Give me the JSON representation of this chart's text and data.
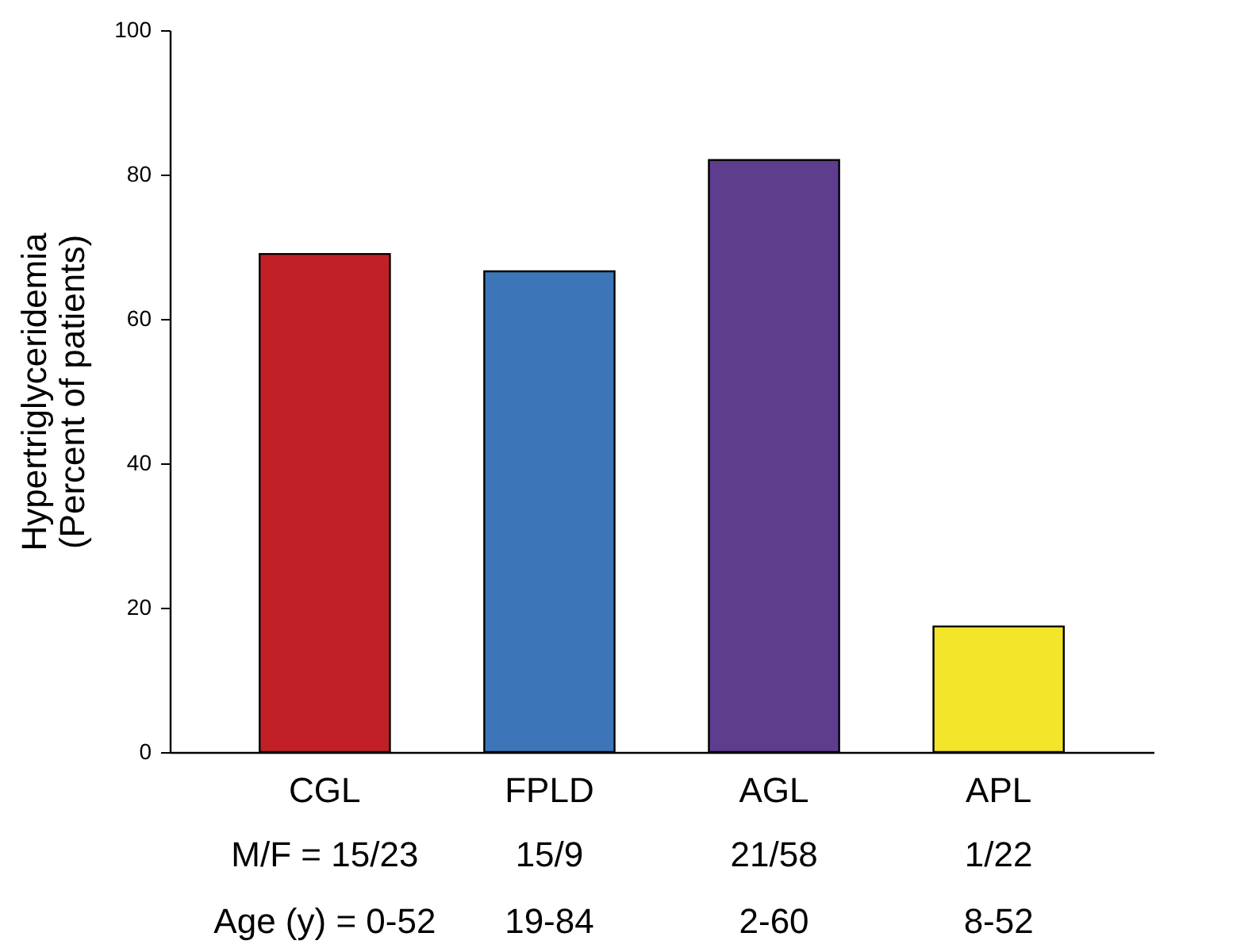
{
  "chart_data": {
    "type": "bar",
    "ylabel": "Hypertriglyceridemia\n(Percent of patients)",
    "categories": [
      "CGL",
      "FPLD",
      "AGL",
      "APL"
    ],
    "values": [
      69,
      66.6,
      82,
      17.4
    ],
    "colors": [
      "#c12026",
      "#3d76b8",
      "#5e3d8f",
      "#f2e52a"
    ],
    "ylim": [
      0,
      100
    ],
    "yticks": [
      0,
      20,
      40,
      60,
      80,
      100
    ],
    "grid": false,
    "annotations": [
      "M/F = 15/23",
      "15/9",
      "21/58",
      "1/22",
      "Age (y) = 0-52",
      "19-84",
      "2-60",
      "8-52"
    ]
  }
}
